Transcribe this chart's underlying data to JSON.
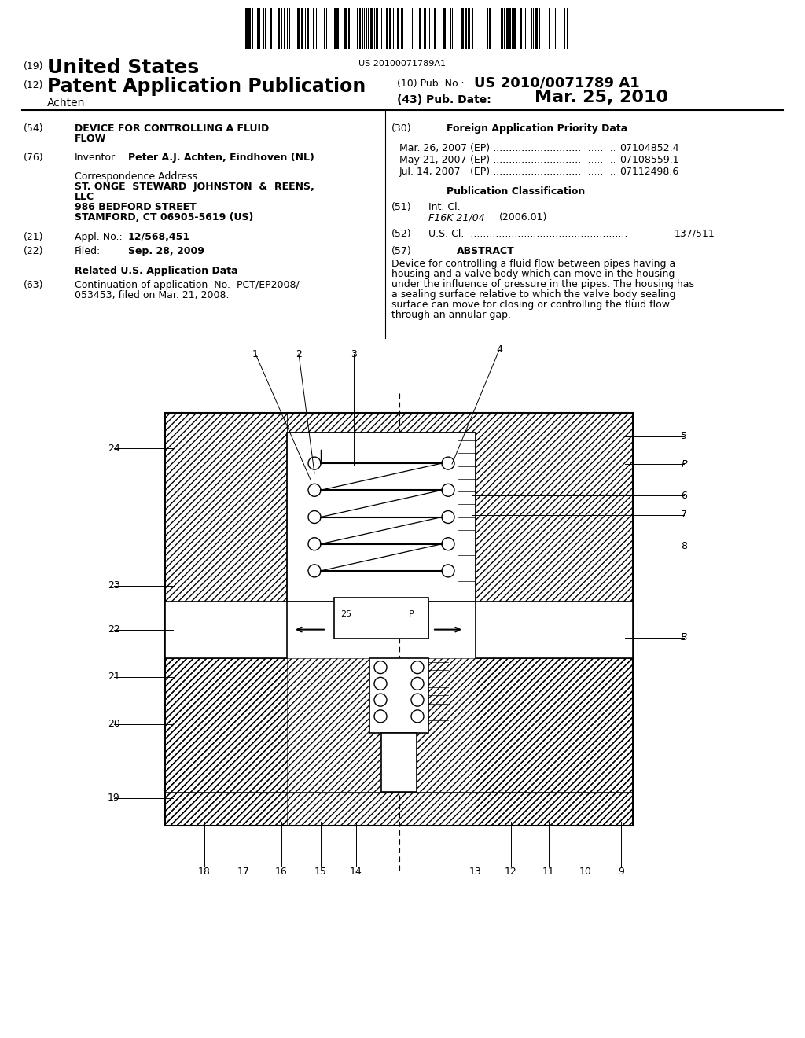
{
  "bg_color": "#ffffff",
  "barcode_text": "US 20100071789A1",
  "abstract_text": "Device for controlling a fluid flow between pipes having a housing and a valve body which can move in the housing under the influence of pressure in the pipes. The housing has a sealing surface relative to which the valve body sealing surface can move for closing or controlling the fluid flow through an annular gap."
}
